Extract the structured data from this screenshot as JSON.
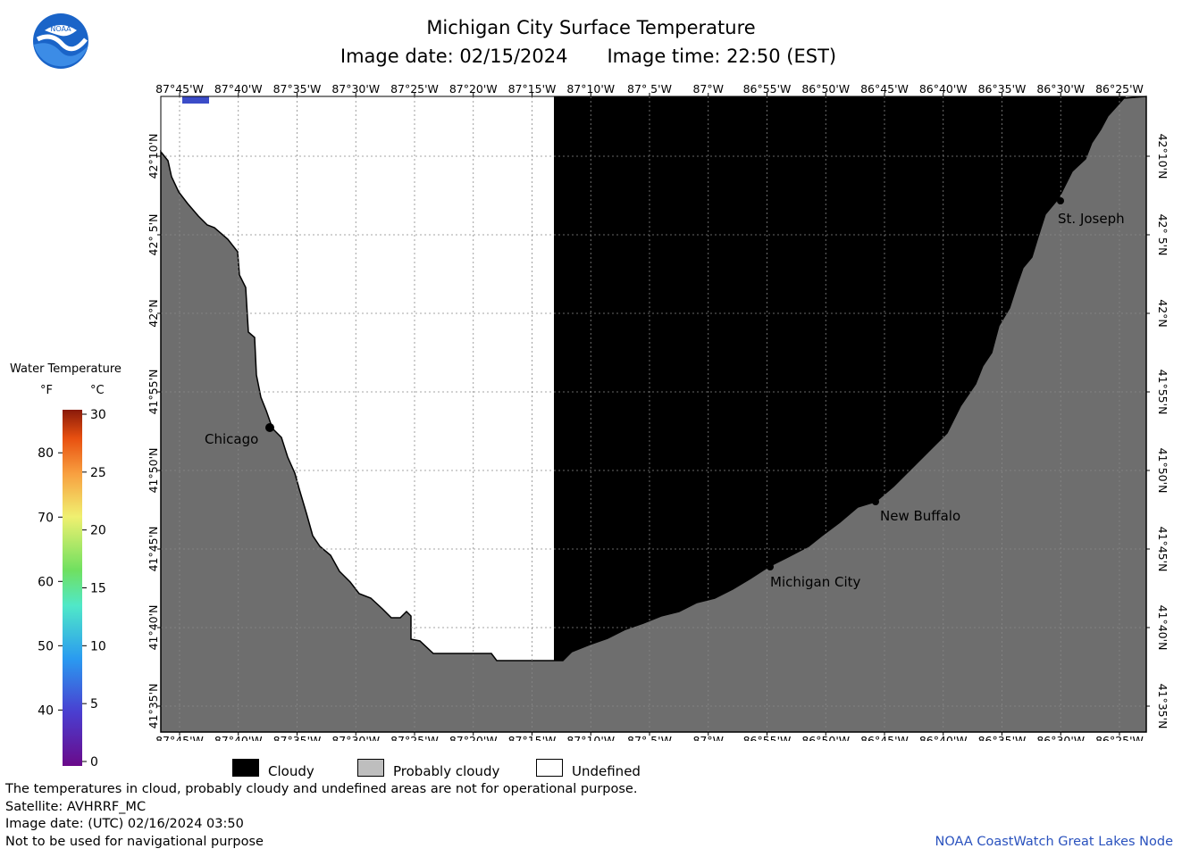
{
  "header": {
    "title": "Michigan City Surface Temperature",
    "image_date": "Image date: 02/15/2024",
    "image_time": "Image time: 22:50 (EST)"
  },
  "logo": {
    "text": "NOAA",
    "icon": "noaa-logo-icon"
  },
  "axes": {
    "top_bottom_labels": [
      "87°45'W",
      "87°40'W",
      "87°35'W",
      "87°30'W",
      "87°25'W",
      "87°20'W",
      "87°15'W",
      "87°10'W",
      "87° 5'W",
      "87°W",
      "86°55'W",
      "86°50'W",
      "86°45'W",
      "86°40'W",
      "86°35'W",
      "86°30'W",
      "86°25'W"
    ],
    "side_labels": [
      "42°10'N",
      "42° 5'N",
      "42°N",
      "41°55'N",
      "41°50'N",
      "41°45'N",
      "41°40'N",
      "41°35'N"
    ]
  },
  "cities": [
    {
      "name": "Chicago"
    },
    {
      "name": "St. Joseph"
    },
    {
      "name": "New Buffalo"
    },
    {
      "name": "Michigan City"
    }
  ],
  "legend": {
    "title": "Water Temperature",
    "unit_f": "°F",
    "unit_c": "°C",
    "f_ticks": [
      "80",
      "70",
      "60",
      "50",
      "40"
    ],
    "c_ticks": [
      "30",
      "25",
      "20",
      "15",
      "10",
      "5",
      "0"
    ]
  },
  "key": {
    "cloudy": "Cloudy",
    "probably_cloudy": "Probably cloudy",
    "undefined": "Undefined"
  },
  "footer": {
    "line1": "The temperatures in cloud, probably cloudy and undefined areas are not for operational purpose.",
    "line2": "Satellite: AVHRRF_MC",
    "line3": "Image date: (UTC) 02/16/2024  03:50",
    "line4": "Not to be used for navigational purpose",
    "credit": "NOAA CoastWatch Great Lakes Node"
  },
  "colors": {
    "land": "#6e6e6e",
    "cloudy": "#000000",
    "probably_cloudy": "#bebebe",
    "undefined": "#ffffff",
    "credit": "#2a52be"
  }
}
